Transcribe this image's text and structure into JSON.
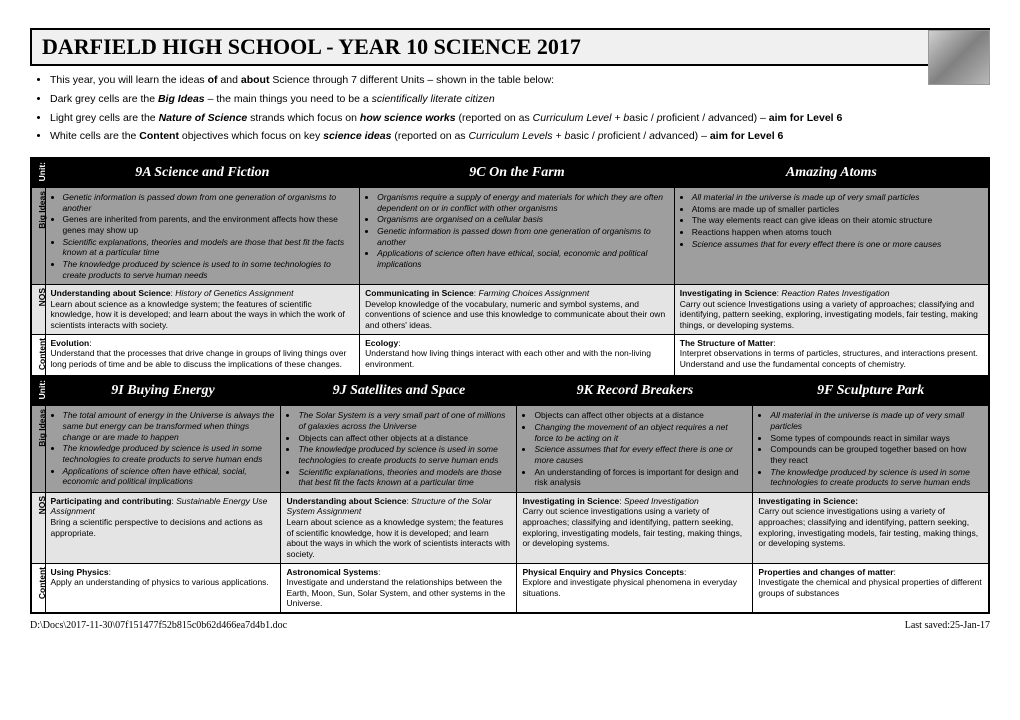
{
  "header": {
    "title": "DARFIELD HIGH SCHOOL - YEAR 10 SCIENCE 2017"
  },
  "intro_html": [
    "This year, you will learn the ideas <b>of</b> and <b>about</b> Science through 7 different Units – shown in the table below:",
    "Dark grey cells are the <b><i>Big Ideas</i></b> – the main things you need to be a <i>scientifically literate citizen</i>",
    "Light grey cells are the <b><i>Nature of Science</i></b> strands which focus on <b><i>how science works</i></b> (reported on as <i>Curriculum Level + b</i>asic / <i>p</i>roficient / <i>a</i>dvanced) – <b>aim for Level 6</b>",
    "White cells are the <b>Content</b> objectives which focus on key <b><i>science ideas</i></b> (reported on as <i>Curriculum Levels + b</i>asic / <i>p</i>roficient / <i>a</i>dvanced) – <b>aim for Level 6</b>"
  ],
  "labels": {
    "unit": "Unit:",
    "big": "Big Ideas",
    "nos": "NOS",
    "content": "Content"
  },
  "top": {
    "units": [
      "9A  Science and Fiction",
      "9C  On the Farm",
      "Amazing Atoms"
    ],
    "big": [
      [
        "<i>Genetic information is passed down from one generation of organisms to another</i>",
        "Genes are inherited from parents, and the environment affects how these genes may show up",
        "<i>Scientific explanations, theories and models are those that best fit the facts known at a particular time</i>",
        "<i>The knowledge produced by science is used to in some technologies to create products to serve human needs</i>"
      ],
      [
        "<i>Organisms require a supply of energy and materials for which they are often dependent on or in conflict with other organisms</i>",
        "<i>Organisms are organised on a cellular basis</i>",
        "<i>Genetic information is passed down from one generation of organisms to another</i>",
        "<i>Applications of science often have ethical, social, economic and political implications</i>"
      ],
      [
        "<i>All material in the universe is made up of very small particles</i>",
        "Atoms are made up of smaller particles",
        "The way elements react can give ideas on their atomic structure",
        "Reactions happen when atoms touch",
        "<i>Science assumes that for every effect there is one or more causes</i>"
      ]
    ],
    "nos": [
      "<b>Understanding about Science</b>: <i>History of Genetics Assignment</i><br>Learn about science as a knowledge system; the features of scientific knowledge, how it is developed; and learn about the ways in which the work of scientists interacts with society.",
      "<b>Communicating in Science</b>: <i>Farming Choices Assignment</i><br>Develop knowledge of the vocabulary, numeric and symbol systems, and conventions of science and use this knowledge to communicate about their own and others' ideas.",
      "<b>Investigating in Science</b>: <i>Reaction Rates Investigation</i><br>Carry out science Investigations using a variety of approaches; classifying and identifying, pattern seeking, exploring, investigating models, fair testing, making things, or developing systems."
    ],
    "content": [
      "<b>Evolution</b>:<br>Understand that the processes that drive change in groups of living things over long periods of time and be able to discuss the implications of these changes.",
      "<b>Ecology</b>:<br>Understand how living things interact with each other and with the non-living environment.",
      "<b>The Structure of Matter</b>:<br>Interpret observations in terms of particles, structures, and interactions present.  Understand and use the fundamental concepts of chemistry."
    ]
  },
  "bottom": {
    "units": [
      "9I  Buying Energy",
      "9J  Satellites and Space",
      "9K  Record Breakers",
      "9F  Sculpture Park"
    ],
    "big": [
      [
        "<i>The total amount of energy in the Universe is always the same but energy can be transformed when things change or are made to happen</i>",
        "<i>The knowledge produced by science is used in some technologies to create products to serve human ends</i>",
        "<i>Applications of science often have ethical, social, economic and political implications</i>"
      ],
      [
        "<i>The Solar System is a very small part of one of millions of galaxies across the Universe</i>",
        "Objects can affect other objects at a distance",
        "<i>The knowledge produced by science is used in some technologies to create products to serve human ends</i>",
        "<i>Scientific explanations, theories and models are those that best fit the facts known at a particular time</i>"
      ],
      [
        "Objects can affect other objects at a distance",
        "<i>Changing the movement of an object requires a net force to be acting on it</i>",
        "<i>Science assumes that for every effect there is one or more causes</i>",
        "An understanding of forces is important for design and risk analysis"
      ],
      [
        "<i>All material in the universe is made up of very small particles</i>",
        "Some types of compounds react in similar ways",
        "Compounds can be grouped together based on how they react",
        "<i>The knowledge produced by science is used in some technologies to create products to serve human ends</i>"
      ]
    ],
    "nos": [
      "<b>Participating and contributing</b>: <i>Sustainable Energy Use Assignment</i><br>Bring a scientific perspective to decisions and actions as appropriate.",
      "<b>Understanding about Science</b>: <i>Structure of the Solar System Assignment</i><br>Learn about science as a knowledge system; the features of scientific knowledge, how it is developed; and learn about the ways in which the work of scientists interacts with society.",
      "<b>Investigating in Science</b>: <i>Speed Investigation</i><br>Carry out science investigations using a variety of approaches; classifying and identifying, pattern seeking, exploring, investigating models, fair testing, making things, or developing systems.",
      "<b>Investigating in Science:</b><br>Carry out science investigations using a variety of approaches; classifying and identifying, pattern seeking, exploring, investigating models, fair testing, making things, or developing systems."
    ],
    "content": [
      "<b>Using Physics</b>:<br>Apply an understanding of physics to various applications.",
      "<b>Astronomical Systems</b>:<br>Investigate and understand the relationships between the Earth, Moon, Sun, Solar System, and other systems in the Universe.",
      "<b>Physical Enquiry and Physics Concepts</b>:<br>Explore and investigate physical phenomena in everyday situations.",
      "<b>Properties and changes of matter</b>:<br>Investigate the chemical and physical properties of different  groups of substances"
    ]
  },
  "footer": {
    "path": "D:\\Docs\\2017-11-30\\07f151477f52b815c0b62d466ea7d4b1.doc",
    "saved": "Last saved:25-Jan-17"
  }
}
